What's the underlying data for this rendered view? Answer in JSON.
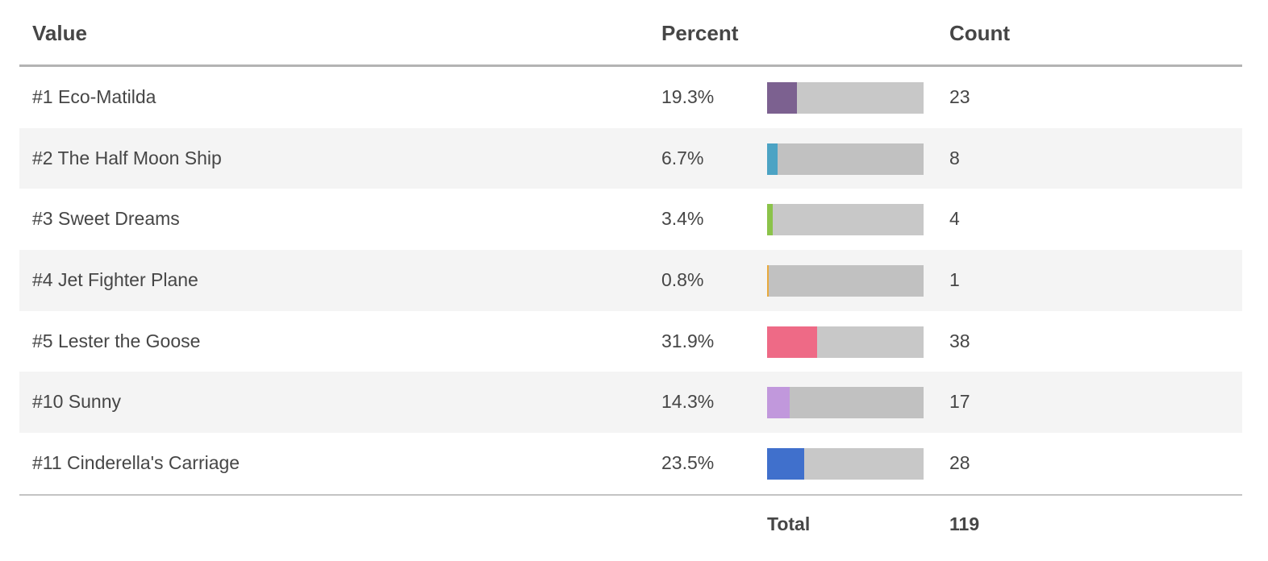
{
  "headers": {
    "value": "Value",
    "percent": "Percent",
    "count": "Count"
  },
  "chart_data": {
    "type": "table",
    "columns": [
      "Value",
      "Percent",
      "Count"
    ],
    "rows": [
      {
        "value": "#1 Eco-Matilda",
        "percent": "19.3%",
        "pct": 19.3,
        "count": "23",
        "color": "#7c6190"
      },
      {
        "value": "#2 The Half Moon Ship",
        "percent": "6.7%",
        "pct": 6.7,
        "count": "8",
        "color": "#4ca3c4"
      },
      {
        "value": "#3 Sweet Dreams",
        "percent": "3.4%",
        "pct": 3.4,
        "count": "4",
        "color": "#8bc34a"
      },
      {
        "value": "#4 Jet Fighter Plane",
        "percent": "0.8%",
        "pct": 0.8,
        "count": "1",
        "color": "#e8a93c"
      },
      {
        "value": "#5 Lester the Goose",
        "percent": "31.9%",
        "pct": 31.9,
        "count": "38",
        "color": "#ee6a86"
      },
      {
        "value": "#10 Sunny",
        "percent": "14.3%",
        "pct": 14.3,
        "count": "17",
        "color": "#c198dc"
      },
      {
        "value": "#11 Cinderella's Carriage",
        "percent": "23.5%",
        "pct": 23.5,
        "count": "28",
        "color": "#4070cc"
      }
    ],
    "total_label": "Total",
    "total_count": "119"
  }
}
